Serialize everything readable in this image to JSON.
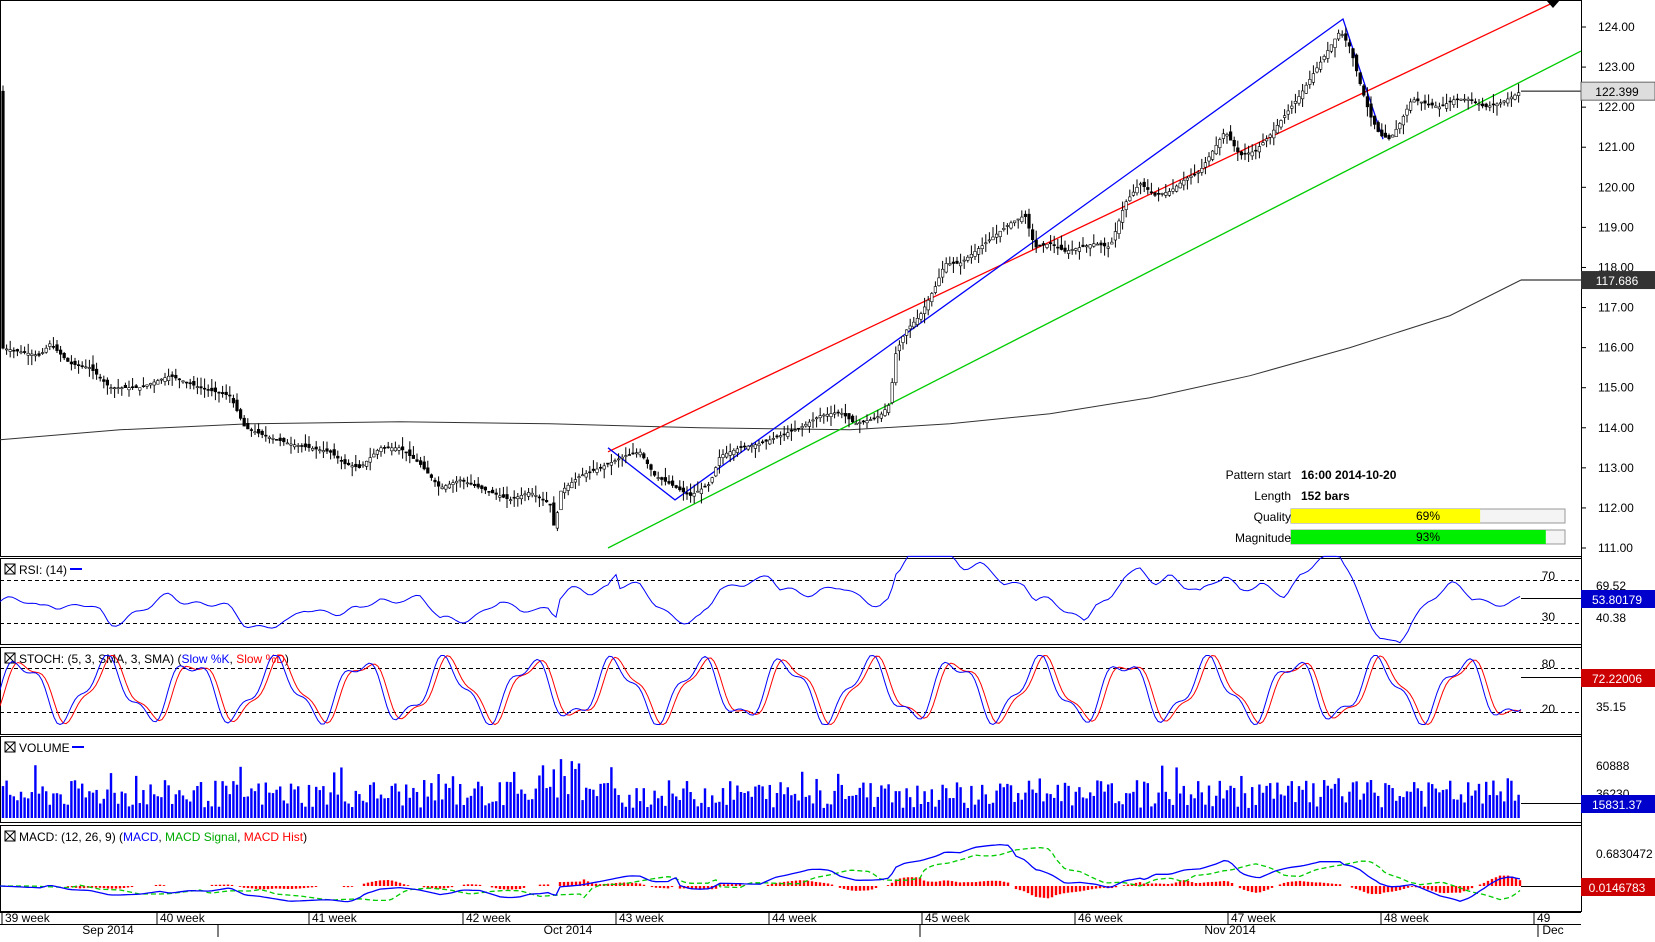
{
  "chart_data": [
    {
      "type": "candlestick",
      "price_labels": [
        "124.00",
        "123.00",
        "122.00",
        "121.00",
        "120.00",
        "119.00",
        "118.00",
        "117.00",
        "116.00",
        "115.00",
        "114.00",
        "113.00",
        "112.00",
        "111.00"
      ],
      "ylim": [
        110.7,
        124.6
      ],
      "current_price": "122.399",
      "ma_value": "117.686",
      "ma_value_num": 117.686,
      "pattern": {
        "start_label": "Pattern start",
        "start_value": "16:00 2014-10-20",
        "length_label": "Length",
        "length_value": "152 bars",
        "quality_label": "Quality",
        "quality_value": "69%",
        "quality_num": 0.69,
        "magnitude_label": "Magnitude",
        "magnitude_value": "93%",
        "magnitude_num": 0.93
      },
      "series_colors": {
        "upper_line": "#ff0000",
        "lower_line": "#00cc00",
        "pattern_line": "#0000ff",
        "ma_line": "#333333"
      }
    },
    {
      "type": "line",
      "title": "RSI: (14)",
      "levels": [
        "70",
        "30"
      ],
      "right_labels": [
        "69.52",
        "40.38"
      ],
      "current": "53.80179",
      "color": "#0000ff"
    },
    {
      "type": "line",
      "title_prefix": "STOCH: (5, 3, SMA, 3, SMA) (",
      "series": [
        {
          "name": "Slow %K",
          "color": "#0000ff"
        },
        {
          "name": "Slow %D",
          "color": "#ff0000"
        }
      ],
      "levels": [
        "80",
        "20"
      ],
      "right_labels": [
        "35.15"
      ],
      "current": "72.22006"
    },
    {
      "type": "bar",
      "title": "VOLUME",
      "right_labels": [
        "60888",
        "36230"
      ],
      "current": "15831.37",
      "color": "#0000ff"
    },
    {
      "type": "line",
      "title_prefix": "MACD: (12, 26, 9) (",
      "series": [
        {
          "name": "MACD",
          "color": "#0000ff"
        },
        {
          "name": "MACD Signal",
          "color": "#00cc00"
        },
        {
          "name": "MACD Hist",
          "color": "#ff0000"
        }
      ],
      "right_labels": [
        "0.6830472"
      ],
      "current": "0.0146783"
    }
  ],
  "x_axis": {
    "weeks": [
      "39 week",
      "40 week",
      "41 week",
      "42 week",
      "43 week",
      "44 week",
      "45 week",
      "46 week",
      "47 week",
      "48 week",
      "49"
    ],
    "months": [
      "Sep 2014",
      "Oct 2014",
      "Nov 2014",
      "Dec"
    ]
  }
}
